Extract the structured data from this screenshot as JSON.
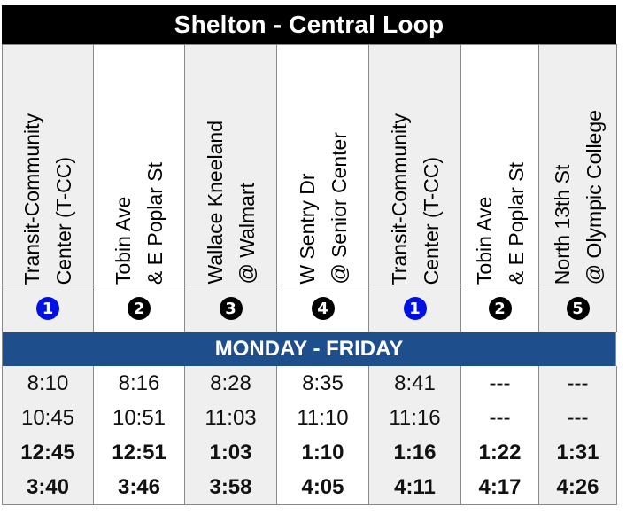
{
  "title": "Shelton - Central Loop",
  "stops": [
    {
      "line1": "Transit-Community",
      "line2": "Center (T-CC)",
      "badge": "1"
    },
    {
      "line1": "Tobin Ave",
      "line2": "& E Poplar St",
      "badge": "2"
    },
    {
      "line1": "Wallace Kneeland",
      "line2": "@ Walmart",
      "badge": "3"
    },
    {
      "line1": "W Sentry Dr",
      "line2": "@ Senior Center",
      "badge": "4"
    },
    {
      "line1": "Transit-Community",
      "line2": "Center (T-CC)",
      "badge": "1"
    },
    {
      "line1": "Tobin Ave",
      "line2": "& E Poplar St",
      "badge": "2"
    },
    {
      "line1": "North 13th St",
      "line2": "@ Olympic College",
      "badge": "5"
    }
  ],
  "section_label": "MONDAY - FRIDAY",
  "times": [
    [
      "8:10",
      "8:16",
      "8:28",
      "8:35",
      "8:41",
      "---",
      "---"
    ],
    [
      "10:45",
      "10:51",
      "11:03",
      "11:10",
      "11:16",
      "---",
      "---"
    ],
    [
      "12:45",
      "12:51",
      "1:03",
      "1:10",
      "1:16",
      "1:22",
      "1:31"
    ],
    [
      "3:40",
      "3:46",
      "3:58",
      "4:05",
      "4:11",
      "4:17",
      "4:26"
    ]
  ],
  "colors": {
    "header_bg": "#000000",
    "day_bar_bg": "#1f4e8c",
    "badge_blue": "#0010e0",
    "badge_black": "#000000"
  }
}
